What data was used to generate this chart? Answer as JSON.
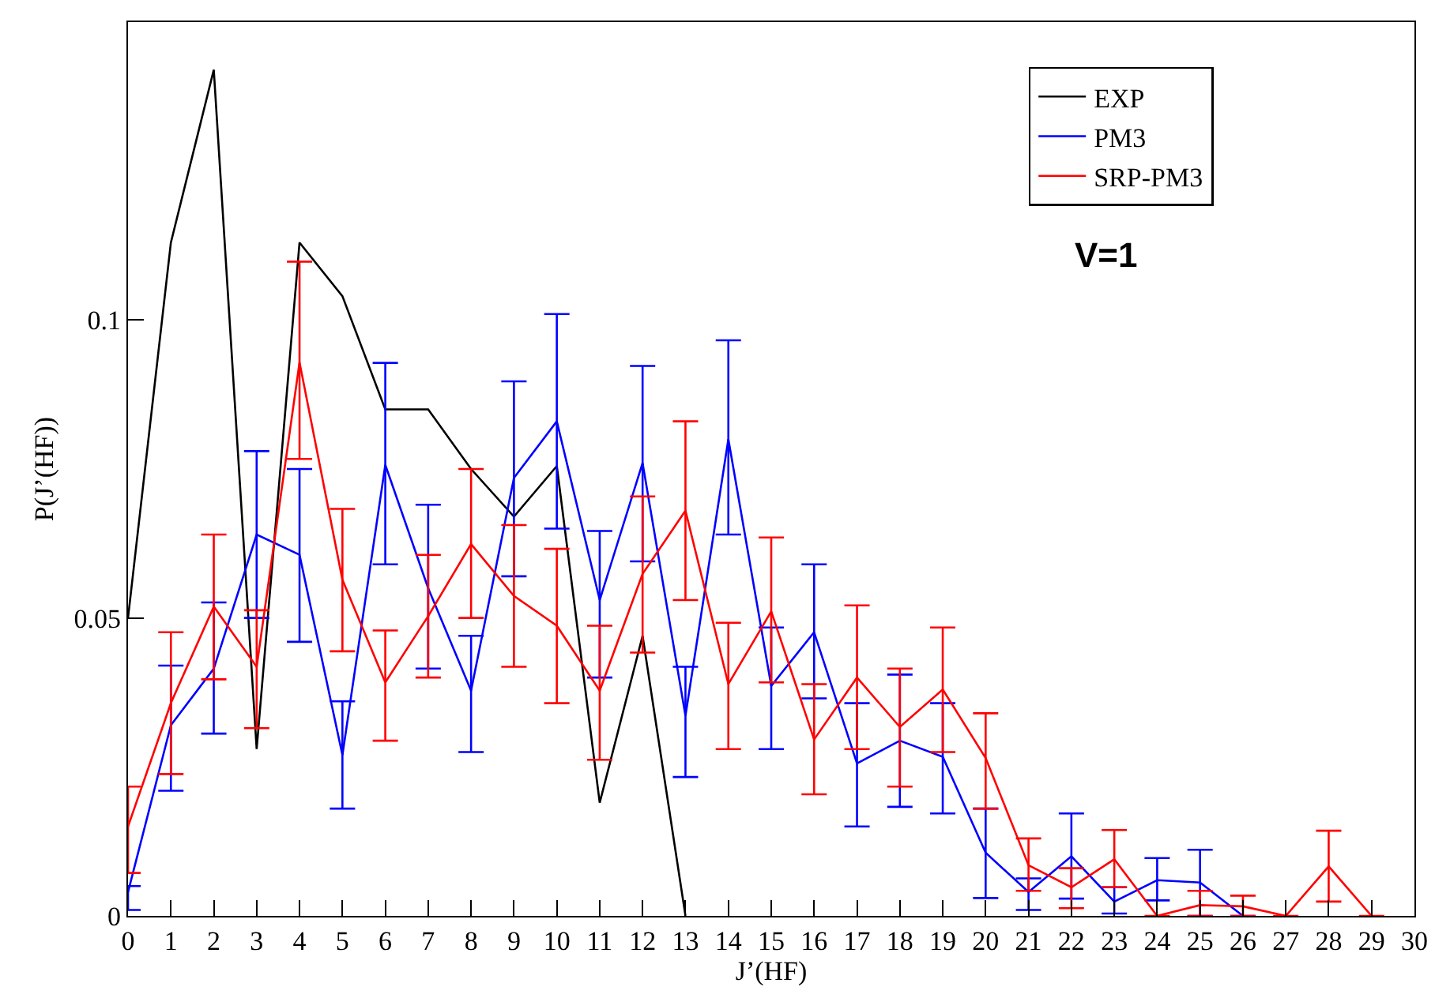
{
  "chart_data": {
    "type": "line",
    "xlabel": "J’(HF)",
    "ylabel": "P(J’(HF))",
    "annotations": [
      "V=1"
    ],
    "xlim": [
      0,
      30
    ],
    "xticks": [
      0,
      1,
      2,
      3,
      4,
      5,
      6,
      7,
      8,
      9,
      10,
      11,
      12,
      13,
      14,
      15,
      16,
      17,
      18,
      19,
      20,
      21,
      22,
      23,
      24,
      25,
      26,
      27,
      28,
      29,
      30
    ],
    "ylim": [
      0,
      0.15
    ],
    "yticks": [
      0,
      0.05,
      0.1
    ],
    "grid": false,
    "legend": "top right",
    "marker": "none",
    "line_style": "solid",
    "series": [
      {
        "name": "EXP",
        "color": "#000000",
        "x": [
          0,
          1,
          2,
          3,
          4,
          5,
          6,
          7,
          8,
          9,
          10,
          11,
          12,
          13
        ],
        "values": [
          0.05,
          0.113,
          0.142,
          0.028,
          0.113,
          0.104,
          0.085,
          0.085,
          0.075,
          0.067,
          0.0755,
          0.019,
          0.047,
          0
        ]
      },
      {
        "name": "PM3",
        "color": "#0000ff",
        "x": [
          0,
          1,
          2,
          3,
          4,
          5,
          6,
          7,
          8,
          9,
          10,
          11,
          12,
          13,
          14,
          15,
          16,
          17,
          18,
          19,
          20,
          21,
          22,
          23,
          24,
          25,
          26
        ],
        "values": [
          0.004,
          0.032,
          0.0415,
          0.064,
          0.0606,
          0.027,
          0.0757,
          0.055,
          0.0378,
          0.0735,
          0.083,
          0.053,
          0.076,
          0.0336,
          0.08,
          0.0386,
          0.0476,
          0.0256,
          0.0294,
          0.0267,
          0.0106,
          0.004,
          0.01,
          0.0024,
          0.006,
          0.0056,
          0
        ],
        "errors": [
          [
            0.001,
            0.005
          ],
          [
            0.021,
            0.042
          ],
          [
            0.0306,
            0.0526
          ],
          [
            0.05,
            0.078
          ],
          [
            0.046,
            0.075
          ],
          [
            0.018,
            0.036
          ],
          [
            0.059,
            0.0928
          ],
          [
            0.0415,
            0.069
          ],
          [
            0.0275,
            0.047
          ],
          [
            0.057,
            0.0897
          ],
          [
            0.065,
            0.101
          ],
          [
            0.04,
            0.0646
          ],
          [
            0.0595,
            0.0923
          ],
          [
            0.0233,
            0.0418
          ],
          [
            0.064,
            0.0966
          ],
          [
            0.028,
            0.0484
          ],
          [
            0.0365,
            0.059
          ],
          [
            0.015,
            0.0357
          ],
          [
            0.0183,
            0.0405
          ],
          [
            0.0172,
            0.0357
          ],
          [
            0.003,
            0.018
          ],
          [
            0.001,
            0.0063
          ],
          [
            0.0029,
            0.0172
          ],
          [
            0.0004,
            0.0048
          ],
          [
            0.0026,
            0.0097
          ],
          [
            0,
            0.0111
          ],
          null
        ]
      },
      {
        "name": "SRP-PM3",
        "color": "#ff0000",
        "x": [
          0,
          1,
          2,
          3,
          4,
          5,
          6,
          7,
          8,
          9,
          10,
          11,
          12,
          13,
          14,
          15,
          16,
          17,
          18,
          19,
          20,
          21,
          22,
          23,
          24,
          25,
          26,
          27,
          28,
          29
        ],
        "values": [
          0.015,
          0.0357,
          0.0519,
          0.0418,
          0.0929,
          0.0564,
          0.0392,
          0.0503,
          0.0624,
          0.0537,
          0.0487,
          0.0378,
          0.0574,
          0.068,
          0.0389,
          0.0511,
          0.0296,
          0.04,
          0.0317,
          0.038,
          0.0265,
          0.0085,
          0.0048,
          0.0095,
          0,
          0.0018,
          0.0016,
          0,
          0.0083,
          0
        ],
        "errors": [
          [
            0.0072,
            0.0217
          ],
          [
            0.0238,
            0.0476
          ],
          [
            0.0397,
            0.064
          ],
          [
            0.0315,
            0.0513
          ],
          [
            0.0767,
            0.1098
          ],
          [
            0.0444,
            0.0683
          ],
          [
            0.0294,
            0.0479
          ],
          [
            0.04,
            0.0606
          ],
          [
            0.05,
            0.075
          ],
          [
            0.0418,
            0.0656
          ],
          [
            0.0357,
            0.0616
          ],
          [
            0.0262,
            0.0487
          ],
          [
            0.0442,
            0.0704
          ],
          [
            0.053,
            0.083
          ],
          [
            0.028,
            0.0492
          ],
          [
            0.0392,
            0.0635
          ],
          [
            0.0204,
            0.0389
          ],
          [
            0.028,
            0.0521
          ],
          [
            0.0217,
            0.0415
          ],
          [
            0.0275,
            0.0484
          ],
          [
            0.018,
            0.034
          ],
          [
            0.0042,
            0.013
          ],
          [
            0.0013,
            0.008
          ],
          [
            0.0048,
            0.0144
          ],
          null,
          [
            0,
            0.0042
          ],
          [
            0,
            0.0034
          ],
          null,
          [
            0.0024,
            0.0143
          ],
          null
        ]
      }
    ]
  }
}
